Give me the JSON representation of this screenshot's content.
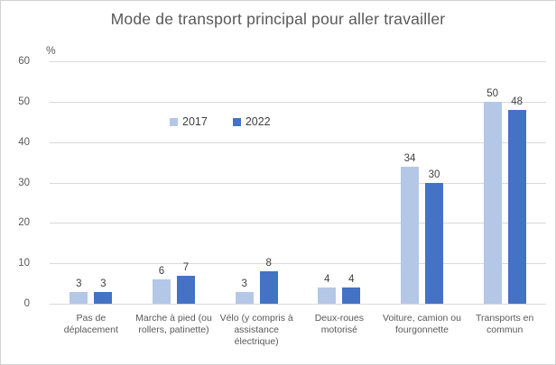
{
  "chart_data": {
    "type": "bar",
    "title": "Mode de transport principal pour aller travailler",
    "ylabel": "%",
    "xlabel": "",
    "categories": [
      "Pas de déplacement",
      "Marche à pied (ou rollers, patinette)",
      "Vélo (y compris à assistance électrique)",
      "Deux-roues motorisé",
      "Voiture, camion ou fourgonnette",
      "Transports en commun"
    ],
    "series": [
      {
        "name": "2017",
        "color": "#B4C7E7",
        "values": [
          3,
          6,
          3,
          4,
          34,
          50
        ]
      },
      {
        "name": "2022",
        "color": "#4472C4",
        "values": [
          3,
          7,
          8,
          4,
          30,
          48
        ]
      }
    ],
    "ylim": [
      0,
      60
    ],
    "yticks": [
      0,
      10,
      20,
      30,
      40,
      50,
      60
    ],
    "grid": true,
    "legend_position": "top-center-overlay",
    "colors": {
      "gridline": "#D9D9D9",
      "axis_text": "#595959",
      "value_label": "#404040",
      "title_text": "#595959",
      "background": "#FFFFFF",
      "border": "#D2D2D2"
    }
  }
}
